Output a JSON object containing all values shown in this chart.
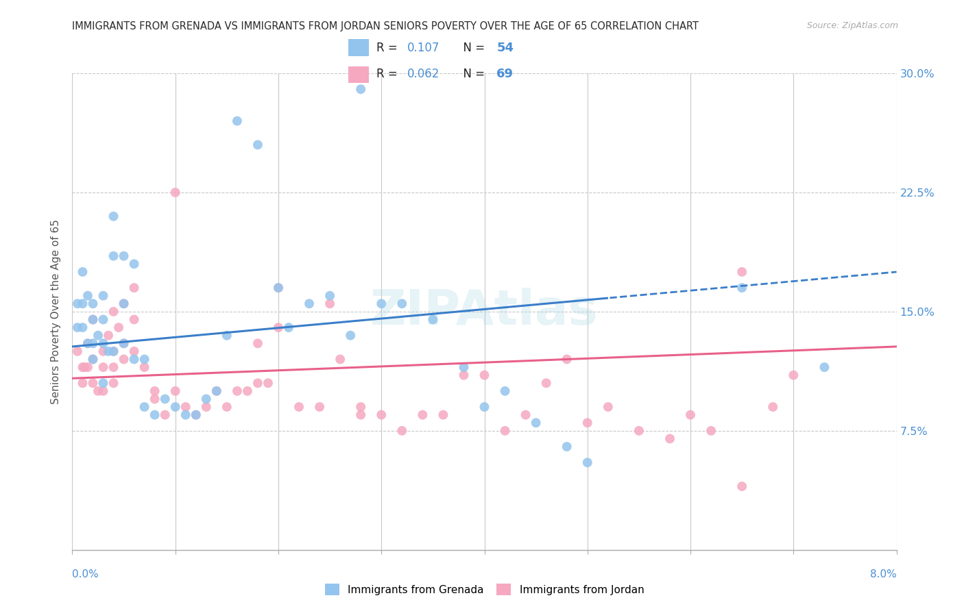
{
  "title": "IMMIGRANTS FROM GRENADA VS IMMIGRANTS FROM JORDAN SENIORS POVERTY OVER THE AGE OF 65 CORRELATION CHART",
  "source": "Source: ZipAtlas.com",
  "ylabel": "Seniors Poverty Over the Age of 65",
  "legend_grenada": "Immigrants from Grenada",
  "legend_jordan": "Immigrants from Jordan",
  "R_grenada": 0.107,
  "N_grenada": 54,
  "R_jordan": 0.062,
  "N_jordan": 69,
  "color_grenada": "#93C4ED",
  "color_jordan": "#F5A8C0",
  "color_grenada_line": "#3A7EC9",
  "color_jordan_line": "#E8608A",
  "watermark": "ZIPAtlas",
  "xlim": [
    0.0,
    0.08
  ],
  "ylim": [
    0.0,
    0.3
  ],
  "yticks": [
    0.0,
    0.075,
    0.15,
    0.225,
    0.3
  ],
  "ytick_labels": [
    "",
    "7.5%",
    "15.0%",
    "22.5%",
    "30.0%"
  ],
  "grenada_x": [
    0.0005,
    0.0005,
    0.001,
    0.001,
    0.001,
    0.0015,
    0.0015,
    0.002,
    0.002,
    0.002,
    0.002,
    0.0025,
    0.003,
    0.003,
    0.003,
    0.003,
    0.0035,
    0.004,
    0.004,
    0.004,
    0.005,
    0.005,
    0.005,
    0.006,
    0.006,
    0.007,
    0.007,
    0.008,
    0.009,
    0.01,
    0.011,
    0.012,
    0.013,
    0.014,
    0.015,
    0.016,
    0.018,
    0.02,
    0.021,
    0.023,
    0.025,
    0.027,
    0.028,
    0.03,
    0.032,
    0.035,
    0.038,
    0.04,
    0.042,
    0.045,
    0.048,
    0.05,
    0.065,
    0.073
  ],
  "grenada_y": [
    0.155,
    0.14,
    0.175,
    0.155,
    0.14,
    0.13,
    0.16,
    0.145,
    0.13,
    0.155,
    0.12,
    0.135,
    0.16,
    0.145,
    0.13,
    0.105,
    0.125,
    0.21,
    0.185,
    0.125,
    0.185,
    0.155,
    0.13,
    0.18,
    0.12,
    0.12,
    0.09,
    0.085,
    0.095,
    0.09,
    0.085,
    0.085,
    0.095,
    0.1,
    0.135,
    0.27,
    0.255,
    0.165,
    0.14,
    0.155,
    0.16,
    0.135,
    0.29,
    0.155,
    0.155,
    0.145,
    0.115,
    0.09,
    0.1,
    0.08,
    0.065,
    0.055,
    0.165,
    0.115
  ],
  "jordan_x": [
    0.0005,
    0.001,
    0.001,
    0.0012,
    0.0015,
    0.0015,
    0.002,
    0.002,
    0.002,
    0.0025,
    0.003,
    0.003,
    0.003,
    0.0035,
    0.004,
    0.004,
    0.004,
    0.004,
    0.0045,
    0.005,
    0.005,
    0.005,
    0.006,
    0.006,
    0.006,
    0.007,
    0.008,
    0.008,
    0.009,
    0.01,
    0.01,
    0.011,
    0.012,
    0.013,
    0.014,
    0.015,
    0.016,
    0.017,
    0.018,
    0.018,
    0.019,
    0.02,
    0.02,
    0.022,
    0.024,
    0.025,
    0.026,
    0.028,
    0.028,
    0.03,
    0.032,
    0.034,
    0.036,
    0.038,
    0.04,
    0.042,
    0.044,
    0.046,
    0.048,
    0.05,
    0.052,
    0.055,
    0.058,
    0.06,
    0.062,
    0.065,
    0.068,
    0.07,
    0.065
  ],
  "jordan_y": [
    0.125,
    0.115,
    0.105,
    0.115,
    0.13,
    0.115,
    0.145,
    0.12,
    0.105,
    0.1,
    0.125,
    0.115,
    0.1,
    0.135,
    0.15,
    0.125,
    0.115,
    0.105,
    0.14,
    0.155,
    0.13,
    0.12,
    0.165,
    0.145,
    0.125,
    0.115,
    0.1,
    0.095,
    0.085,
    0.225,
    0.1,
    0.09,
    0.085,
    0.09,
    0.1,
    0.09,
    0.1,
    0.1,
    0.13,
    0.105,
    0.105,
    0.165,
    0.14,
    0.09,
    0.09,
    0.155,
    0.12,
    0.09,
    0.085,
    0.085,
    0.075,
    0.085,
    0.085,
    0.11,
    0.11,
    0.075,
    0.085,
    0.105,
    0.12,
    0.08,
    0.09,
    0.075,
    0.07,
    0.085,
    0.075,
    0.04,
    0.09,
    0.11,
    0.175
  ]
}
